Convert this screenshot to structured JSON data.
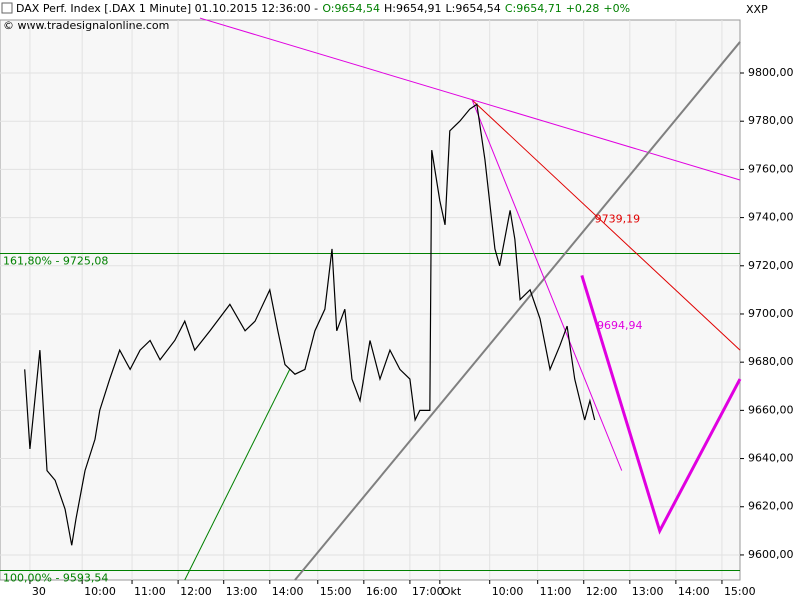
{
  "chart_data": {
    "type": "line",
    "header": [
      {
        "text": "DAX Perf. Index [.DAX  1 Minute] 01.10.2015 12:36:00 -",
        "color": "#000000"
      },
      {
        "text": "O:9654,54",
        "color": "#008000"
      },
      {
        "text": "H:9654,91",
        "color": "#000000"
      },
      {
        "text": "L:9654,54",
        "color": "#000000"
      },
      {
        "text": "C:9654,71",
        "color": "#008000"
      },
      {
        "text": "+0,28",
        "color": "#008000"
      },
      {
        "text": "+0%",
        "color": "#008000"
      }
    ],
    "copyright": "© www.tradesignalonline.com",
    "axis_title": "XXP",
    "xlim": [
      -0.63,
      14.95
    ],
    "ylim": [
      9589.6,
      9822
    ],
    "grid": true,
    "xticks": [
      {
        "value": 0,
        "label": "30"
      },
      {
        "value": 1.1,
        "label": "10:00"
      },
      {
        "value": 2.15,
        "label": "11:00"
      },
      {
        "value": 3.12,
        "label": "12:00"
      },
      {
        "value": 4.08,
        "label": "13:00"
      },
      {
        "value": 5.05,
        "label": "14:00"
      },
      {
        "value": 6.06,
        "label": "15:00"
      },
      {
        "value": 7.03,
        "label": "16:00"
      },
      {
        "value": 8.0,
        "label": "17:00"
      },
      {
        "value": 8.63,
        "label": "Okt"
      },
      {
        "value": 9.68,
        "label": "10:00"
      },
      {
        "value": 10.69,
        "label": "11:00"
      },
      {
        "value": 11.66,
        "label": "12:00"
      },
      {
        "value": 12.63,
        "label": "13:00"
      },
      {
        "value": 13.6,
        "label": "14:00"
      },
      {
        "value": 14.57,
        "label": "15:00"
      }
    ],
    "yticks": [
      {
        "value": 9600,
        "label": "9600,00"
      },
      {
        "value": 9620,
        "label": "9620,00"
      },
      {
        "value": 9640,
        "label": "9640,00"
      },
      {
        "value": 9660,
        "label": "9660,00"
      },
      {
        "value": 9680,
        "label": "9680,00"
      },
      {
        "value": 9700,
        "label": "9700,00"
      },
      {
        "value": 9720,
        "label": "9720,00"
      },
      {
        "value": 9740,
        "label": "9740,00"
      },
      {
        "value": 9760,
        "label": "9760,00"
      },
      {
        "value": 9780,
        "label": "9780,00"
      },
      {
        "value": 9800,
        "label": "9800,00"
      }
    ],
    "series": [
      {
        "color": "#000000",
        "x": [
          -0.11,
          0,
          0.21,
          0.36,
          0.53,
          0.74,
          0.88,
          0.97,
          1.16,
          1.37,
          1.47,
          1.68,
          1.89,
          2.11,
          2.32,
          2.53,
          2.74,
          3.05,
          3.26,
          3.47,
          3.79,
          4.21,
          4.53,
          4.74,
          5.05,
          5.22,
          5.37,
          5.58,
          5.79,
          6.0,
          6.21,
          6.36,
          6.46,
          6.63,
          6.78,
          6.95,
          7.16,
          7.37,
          7.58,
          7.79,
          8.0,
          8.11,
          8.21,
          8.42,
          8.46,
          8.63,
          8.74,
          8.84,
          9.05,
          9.26,
          9.41,
          9.58,
          9.79,
          9.89,
          10.11,
          10.21,
          10.32,
          10.53,
          10.74,
          10.95,
          11.16,
          11.31,
          11.47,
          11.68,
          11.79,
          11.89
        ],
        "values": [
          9677,
          9644,
          9685,
          9635,
          9631,
          9619,
          9604,
          9615,
          9635,
          9648,
          9660,
          9673,
          9685,
          9677,
          9685,
          9689,
          9681,
          9689,
          9697,
          9685,
          9693,
          9704,
          9693,
          9697,
          9710,
          9693,
          9679,
          9675,
          9677,
          9693,
          9702,
          9727,
          9693,
          9702,
          9673,
          9664,
          9689,
          9673,
          9685,
          9677,
          9673,
          9656,
          9660,
          9660,
          9768,
          9747,
          9737,
          9776,
          9780,
          9785,
          9787,
          9764,
          9727,
          9720,
          9743,
          9731,
          9706,
          9710,
          9698,
          9677,
          9687,
          9695,
          9673,
          9656,
          9664,
          9656
        ]
      }
    ],
    "levels": [
      {
        "label": "161,80% - 9725,08",
        "value": 9725.08,
        "color": "#008000"
      },
      {
        "label": "100,00% - 9593,54",
        "value": 9593.54,
        "color": "#008000"
      }
    ],
    "trendlines": [
      {
        "color": "#e000e0",
        "width": 1,
        "x": [
          3.58,
          14.95
        ],
        "y": [
          9822.8,
          9755.6
        ]
      },
      {
        "color": "#808080",
        "width": 2,
        "x": [
          5.58,
          14.95
        ],
        "y": [
          9589.6,
          9812.9
        ]
      },
      {
        "color": "#e00000",
        "width": 1,
        "x": [
          9.31,
          14.95
        ],
        "y": [
          9788.8,
          9685
        ]
      },
      {
        "color": "#e000e0",
        "width": 1,
        "x": [
          9.31,
          12.46
        ],
        "y": [
          9788.8,
          9635
        ]
      },
      {
        "color": "#008000",
        "width": 1,
        "x": [
          3.26,
          5.47
        ],
        "y": [
          9589.6,
          9677
        ]
      },
      {
        "color": "#e000e0",
        "width": 3,
        "x": [
          11.62,
          13.26,
          14.95
        ],
        "y": [
          9716,
          9610,
          9673
        ]
      }
    ],
    "annotations": [
      {
        "text": "9739,19",
        "x": 11.89,
        "y": 9739.19,
        "color": "#e00000"
      },
      {
        "text": "9694,94",
        "x": 11.94,
        "y": 9694.94,
        "color": "#e000e0"
      }
    ]
  }
}
